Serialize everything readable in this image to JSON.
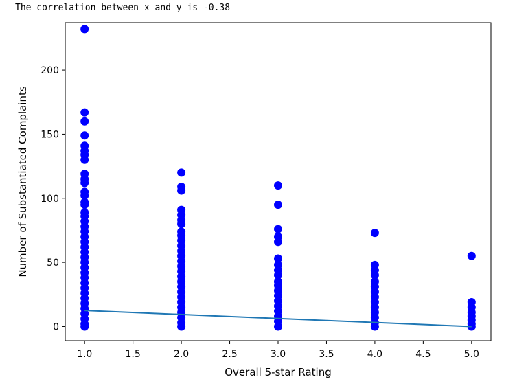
{
  "output_text": "The correlation between x and y is -0.38",
  "chart_data": {
    "type": "scatter",
    "title": "",
    "xlabel": "Overall 5-star Rating",
    "ylabel": "Number of Substantiated Complaints",
    "xlim": [
      0.8,
      5.2
    ],
    "ylim": [
      -11,
      237
    ],
    "xticks": [
      1.0,
      1.5,
      2.0,
      2.5,
      3.0,
      3.5,
      4.0,
      4.5,
      5.0
    ],
    "xtick_labels": [
      "1.0",
      "1.5",
      "2.0",
      "2.5",
      "3.0",
      "3.5",
      "4.0",
      "4.5",
      "5.0"
    ],
    "yticks": [
      0,
      50,
      100,
      150,
      200
    ],
    "ytick_labels": [
      "0",
      "50",
      "100",
      "150",
      "200"
    ],
    "grid": false,
    "series": [
      {
        "kind": "scatter",
        "color": "#0000ff",
        "points": [
          {
            "x": 1,
            "y": 232
          },
          {
            "x": 1,
            "y": 167
          },
          {
            "x": 1,
            "y": 160
          },
          {
            "x": 1,
            "y": 149
          },
          {
            "x": 1,
            "y": 141
          },
          {
            "x": 1,
            "y": 137
          },
          {
            "x": 1,
            "y": 134
          },
          {
            "x": 1,
            "y": 130
          },
          {
            "x": 1,
            "y": 119
          },
          {
            "x": 1,
            "y": 115
          },
          {
            "x": 1,
            "y": 112
          },
          {
            "x": 1,
            "y": 105
          },
          {
            "x": 1,
            "y": 102
          },
          {
            "x": 1,
            "y": 97
          },
          {
            "x": 1,
            "y": 95
          },
          {
            "x": 1,
            "y": 89
          },
          {
            "x": 1,
            "y": 86
          },
          {
            "x": 1,
            "y": 82
          },
          {
            "x": 1,
            "y": 78
          },
          {
            "x": 1,
            "y": 74
          },
          {
            "x": 1,
            "y": 70
          },
          {
            "x": 1,
            "y": 66
          },
          {
            "x": 1,
            "y": 62
          },
          {
            "x": 1,
            "y": 58
          },
          {
            "x": 1,
            "y": 54
          },
          {
            "x": 1,
            "y": 50
          },
          {
            "x": 1,
            "y": 46
          },
          {
            "x": 1,
            "y": 42
          },
          {
            "x": 1,
            "y": 38
          },
          {
            "x": 1,
            "y": 34
          },
          {
            "x": 1,
            "y": 30
          },
          {
            "x": 1,
            "y": 26
          },
          {
            "x": 1,
            "y": 22
          },
          {
            "x": 1,
            "y": 18
          },
          {
            "x": 1,
            "y": 14
          },
          {
            "x": 1,
            "y": 10
          },
          {
            "x": 1,
            "y": 6
          },
          {
            "x": 1,
            "y": 2
          },
          {
            "x": 1,
            "y": 0
          },
          {
            "x": 2,
            "y": 120
          },
          {
            "x": 2,
            "y": 109
          },
          {
            "x": 2,
            "y": 106
          },
          {
            "x": 2,
            "y": 91
          },
          {
            "x": 2,
            "y": 87
          },
          {
            "x": 2,
            "y": 83
          },
          {
            "x": 2,
            "y": 80
          },
          {
            "x": 2,
            "y": 74
          },
          {
            "x": 2,
            "y": 71
          },
          {
            "x": 2,
            "y": 67
          },
          {
            "x": 2,
            "y": 63
          },
          {
            "x": 2,
            "y": 59
          },
          {
            "x": 2,
            "y": 55
          },
          {
            "x": 2,
            "y": 51
          },
          {
            "x": 2,
            "y": 47
          },
          {
            "x": 2,
            "y": 43
          },
          {
            "x": 2,
            "y": 39
          },
          {
            "x": 2,
            "y": 35
          },
          {
            "x": 2,
            "y": 31
          },
          {
            "x": 2,
            "y": 27
          },
          {
            "x": 2,
            "y": 23
          },
          {
            "x": 2,
            "y": 19
          },
          {
            "x": 2,
            "y": 15
          },
          {
            "x": 2,
            "y": 11
          },
          {
            "x": 2,
            "y": 7
          },
          {
            "x": 2,
            "y": 3
          },
          {
            "x": 2,
            "y": 0
          },
          {
            "x": 3,
            "y": 110
          },
          {
            "x": 3,
            "y": 95
          },
          {
            "x": 3,
            "y": 76
          },
          {
            "x": 3,
            "y": 70
          },
          {
            "x": 3,
            "y": 66
          },
          {
            "x": 3,
            "y": 53
          },
          {
            "x": 3,
            "y": 48
          },
          {
            "x": 3,
            "y": 44
          },
          {
            "x": 3,
            "y": 40
          },
          {
            "x": 3,
            "y": 35
          },
          {
            "x": 3,
            "y": 32
          },
          {
            "x": 3,
            "y": 28
          },
          {
            "x": 3,
            "y": 24
          },
          {
            "x": 3,
            "y": 20
          },
          {
            "x": 3,
            "y": 16
          },
          {
            "x": 3,
            "y": 12
          },
          {
            "x": 3,
            "y": 8
          },
          {
            "x": 3,
            "y": 4
          },
          {
            "x": 3,
            "y": 0
          },
          {
            "x": 4,
            "y": 73
          },
          {
            "x": 4,
            "y": 48
          },
          {
            "x": 4,
            "y": 44
          },
          {
            "x": 4,
            "y": 40
          },
          {
            "x": 4,
            "y": 35
          },
          {
            "x": 4,
            "y": 31
          },
          {
            "x": 4,
            "y": 27
          },
          {
            "x": 4,
            "y": 23
          },
          {
            "x": 4,
            "y": 19
          },
          {
            "x": 4,
            "y": 15
          },
          {
            "x": 4,
            "y": 11
          },
          {
            "x": 4,
            "y": 7
          },
          {
            "x": 4,
            "y": 3
          },
          {
            "x": 4,
            "y": 0
          },
          {
            "x": 5,
            "y": 55
          },
          {
            "x": 5,
            "y": 19
          },
          {
            "x": 5,
            "y": 15
          },
          {
            "x": 5,
            "y": 11
          },
          {
            "x": 5,
            "y": 8
          },
          {
            "x": 5,
            "y": 5
          },
          {
            "x": 5,
            "y": 2
          },
          {
            "x": 5,
            "y": 0
          }
        ]
      },
      {
        "kind": "line",
        "color": "#1f77b4",
        "points": [
          {
            "x": 1,
            "y": 12.5
          },
          {
            "x": 5,
            "y": 0
          }
        ]
      }
    ]
  }
}
